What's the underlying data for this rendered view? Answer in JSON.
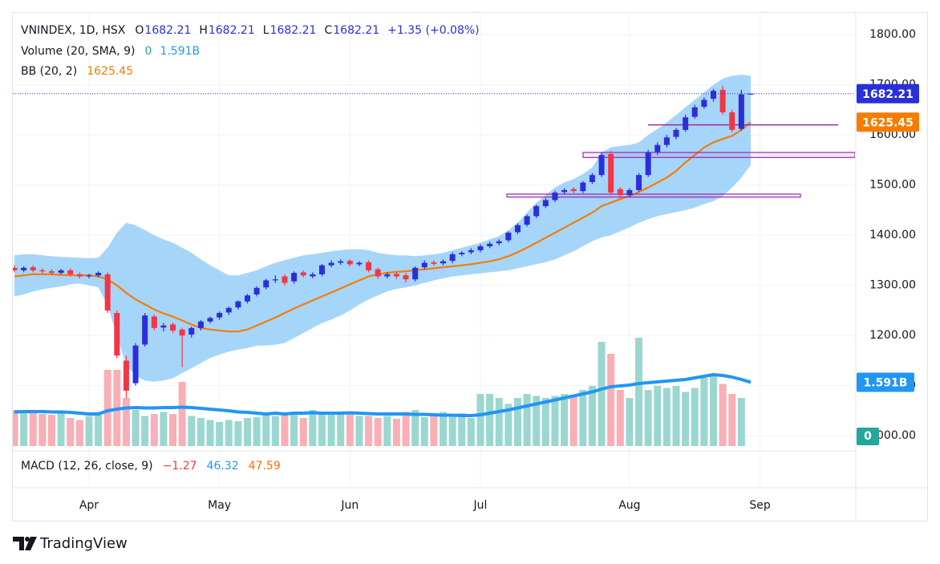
{
  "chart_data": {
    "type": "candlestick",
    "symbol": "VNINDEX, 1D, HSX",
    "ohlc_letters": [
      "O",
      "H",
      "L",
      "C"
    ],
    "change": "+1.35 (+0.08%)",
    "up_color": "#2b2fd9",
    "down_color": "#f23645",
    "categories": [
      null,
      null,
      null,
      null,
      null,
      null,
      null,
      null,
      "Apr",
      null,
      null,
      null,
      null,
      null,
      null,
      null,
      null,
      null,
      null,
      null,
      null,
      null,
      "May",
      null,
      null,
      null,
      null,
      null,
      null,
      null,
      null,
      null,
      null,
      null,
      null,
      null,
      "Jun",
      null,
      null,
      null,
      null,
      null,
      null,
      null,
      null,
      null,
      null,
      null,
      null,
      null,
      "Jul",
      null,
      null,
      null,
      null,
      null,
      null,
      null,
      null,
      null,
      null,
      null,
      null,
      null,
      null,
      null,
      "Aug",
      null,
      null,
      null,
      null,
      null,
      null,
      null,
      null,
      null,
      null,
      null,
      null,
      null,
      "Sep"
    ],
    "open": [
      1335,
      1330,
      1336,
      1330,
      1328,
      1325,
      1330,
      1322,
      1318,
      1320,
      1322,
      1245,
      1150,
      1105,
      1182,
      1238,
      1216,
      1222,
      1212,
      1202,
      1215,
      1228,
      1236,
      1246,
      1256,
      1268,
      1282,
      1296,
      1310,
      1318,
      1308,
      1326,
      1318,
      1322,
      1340,
      1345,
      1349,
      1342,
      1346,
      1332,
      1318,
      1323,
      1320,
      1312,
      1336,
      1346,
      1344,
      1349,
      1362,
      1366,
      1370,
      1378,
      1384,
      1390,
      1406,
      1421,
      1438,
      1458,
      1470,
      1486,
      1492,
      1488,
      1506,
      1520,
      1562,
      1492,
      1480,
      1490,
      1520,
      1566,
      1580,
      1596,
      1610,
      1636,
      1656,
      1672,
      1690,
      1645,
      1612,
      1682.21,
      null
    ],
    "high": [
      1340,
      1338,
      1340,
      1334,
      1332,
      1333,
      1334,
      1326,
      1323,
      1328,
      1326,
      1250,
      1160,
      1185,
      1245,
      1242,
      1225,
      1226,
      1216,
      1218,
      1231,
      1238,
      1248,
      1258,
      1270,
      1283,
      1298,
      1313,
      1320,
      1322,
      1328,
      1330,
      1326,
      1343,
      1350,
      1352,
      1352,
      1348,
      1350,
      1336,
      1326,
      1327,
      1324,
      1338,
      1350,
      1350,
      1352,
      1366,
      1368,
      1374,
      1382,
      1387,
      1392,
      1408,
      1424,
      1441,
      1461,
      1474,
      1489,
      1494,
      1496,
      1508,
      1524,
      1566,
      1568,
      1496,
      1494,
      1524,
      1570,
      1585,
      1600,
      1614,
      1640,
      1660,
      1675,
      1692,
      1698,
      1650,
      1690,
      1682.21,
      null
    ],
    "low": [
      1326,
      1326,
      1326,
      1324,
      1320,
      1322,
      1318,
      1314,
      1314,
      1316,
      1245,
      1155,
      1075,
      1100,
      1178,
      1210,
      1208,
      1205,
      1137,
      1196,
      1210,
      1224,
      1231,
      1241,
      1252,
      1264,
      1278,
      1292,
      1305,
      1300,
      1303,
      1316,
      1314,
      1318,
      1336,
      1341,
      1338,
      1338,
      1326,
      1313,
      1314,
      1313,
      1306,
      1308,
      1332,
      1339,
      1340,
      1344,
      1358,
      1362,
      1366,
      1374,
      1380,
      1386,
      1402,
      1417,
      1434,
      1454,
      1466,
      1481,
      1484,
      1484,
      1502,
      1516,
      1480,
      1474,
      1476,
      1486,
      1516,
      1560,
      1575,
      1591,
      1606,
      1632,
      1652,
      1666,
      1640,
      1605,
      1608,
      1682.21,
      null
    ],
    "close": [
      1330,
      1335,
      1330,
      1328,
      1325,
      1330,
      1322,
      1318,
      1320,
      1325,
      1250,
      1160,
      1090,
      1180,
      1240,
      1215,
      1220,
      1210,
      1200,
      1215,
      1228,
      1235,
      1245,
      1255,
      1268,
      1280,
      1295,
      1310,
      1312,
      1305,
      1325,
      1320,
      1322,
      1340,
      1345,
      1348,
      1342,
      1345,
      1330,
      1318,
      1322,
      1318,
      1312,
      1335,
      1345,
      1343,
      1348,
      1362,
      1365,
      1370,
      1378,
      1383,
      1388,
      1405,
      1420,
      1438,
      1458,
      1470,
      1485,
      1490,
      1488,
      1505,
      1520,
      1560,
      1485,
      1480,
      1490,
      1520,
      1565,
      1580,
      1595,
      1610,
      1635,
      1655,
      1670,
      1688,
      1645,
      1610,
      1680.86,
      1682.21,
      null
    ],
    "ylim": [
      970,
      1845
    ],
    "yticks": [
      {
        "value": 1000,
        "label": "1000.00"
      },
      {
        "value": 1100,
        "label": "1100.00"
      },
      {
        "value": 1200,
        "label": "1200.00"
      },
      {
        "value": 1300,
        "label": "1300.00"
      },
      {
        "value": 1400,
        "label": "1400.00"
      },
      {
        "value": 1500,
        "label": "1500.00"
      },
      {
        "value": 1600,
        "label": "1600.00"
      },
      {
        "value": 1700,
        "label": "1700.00"
      },
      {
        "value": 1800,
        "label": "1800.00"
      }
    ],
    "grid": true,
    "volume": {
      "name": "Volume (20, SMA, 9)",
      "ylim": [
        0,
        10000000000.0
      ],
      "up_color": "#8fd3cb",
      "down_color": "#f7a6ad",
      "sma_color": "#2196f3",
      "zero_box_color": "#26a69a",
      "values": [
        900000000.0,
        850000000.0,
        880000000.0,
        800000000.0,
        780000000.0,
        820000000.0,
        700000000.0,
        650000000.0,
        750000000.0,
        850000000.0,
        1900000000.0,
        1900000000.0,
        1200000000.0,
        900000000.0,
        750000000.0,
        800000000.0,
        850000000.0,
        800000000.0,
        1600000000.0,
        750000000.0,
        700000000.0,
        650000000.0,
        600000000.0,
        650000000.0,
        620000000.0,
        700000000.0,
        720000000.0,
        800000000.0,
        750000000.0,
        780000000.0,
        850000000.0,
        700000000.0,
        900000000.0,
        850000000.0,
        800000000.0,
        820000000.0,
        850000000.0,
        750000000.0,
        750000000.0,
        700000000.0,
        750000000.0,
        680000000.0,
        850000000.0,
        900000000.0,
        720000000.0,
        800000000.0,
        850000000.0,
        780000000.0,
        820000000.0,
        700000000.0,
        1300000000.0,
        1300000000.0,
        1200000000.0,
        1050000000.0,
        1200000000.0,
        1300000000.0,
        1250000000.0,
        1200000000.0,
        1250000000.0,
        1300000000.0,
        1250000000.0,
        1400000000.0,
        1500000000.0,
        2600000000.0,
        2300000000.0,
        1400000000.0,
        1200000000.0,
        2700000000.0,
        1400000000.0,
        1500000000.0,
        1450000000.0,
        1500000000.0,
        1350000000.0,
        1450000000.0,
        1700000000.0,
        1800000000.0,
        1550000000.0,
        1300000000.0,
        1200000000.0,
        0,
        null
      ],
      "sma": [
        850000000.0,
        860000000.0,
        860000000.0,
        860000000.0,
        850000000.0,
        850000000.0,
        840000000.0,
        820000000.0,
        800000000.0,
        800000000.0,
        880000000.0,
        920000000.0,
        950000000.0,
        960000000.0,
        950000000.0,
        950000000.0,
        960000000.0,
        960000000.0,
        970000000.0,
        960000000.0,
        940000000.0,
        920000000.0,
        900000000.0,
        880000000.0,
        850000000.0,
        840000000.0,
        820000000.0,
        800000000.0,
        820000000.0,
        800000000.0,
        820000000.0,
        820000000.0,
        830000000.0,
        820000000.0,
        820000000.0,
        820000000.0,
        830000000.0,
        820000000.0,
        810000000.0,
        800000000.0,
        800000000.0,
        800000000.0,
        800000000.0,
        790000000.0,
        790000000.0,
        780000000.0,
        770000000.0,
        770000000.0,
        760000000.0,
        760000000.0,
        780000000.0,
        820000000.0,
        860000000.0,
        900000000.0,
        950000000.0,
        1000000000.0,
        1050000000.0,
        1100000000.0,
        1150000000.0,
        1200000000.0,
        1250000000.0,
        1300000000.0,
        1350000000.0,
        1420000000.0,
        1480000000.0,
        1500000000.0,
        1520000000.0,
        1560000000.0,
        1580000000.0,
        1600000000.0,
        1620000000.0,
        1640000000.0,
        1660000000.0,
        1700000000.0,
        1740000000.0,
        1780000000.0,
        1760000000.0,
        1720000000.0,
        1660000000.0,
        1591000000.0,
        null
      ],
      "sma_last_label": "1.591B"
    },
    "bb": {
      "name": "BB (20, 2)",
      "fill": "#90caf9",
      "basis_color": "#f57c00",
      "upper": [
        1360,
        1362,
        1362,
        1360,
        1358,
        1357,
        1356,
        1355,
        1354,
        1355,
        1375,
        1405,
        1425,
        1420,
        1410,
        1400,
        1392,
        1385,
        1375,
        1365,
        1352,
        1340,
        1330,
        1320,
        1320,
        1325,
        1330,
        1338,
        1345,
        1350,
        1355,
        1360,
        1362,
        1365,
        1368,
        1370,
        1372,
        1372,
        1370,
        1365,
        1362,
        1360,
        1360,
        1358,
        1360,
        1362,
        1365,
        1370,
        1375,
        1380,
        1385,
        1392,
        1398,
        1410,
        1425,
        1445,
        1465,
        1480,
        1495,
        1505,
        1512,
        1522,
        1535,
        1565,
        1575,
        1578,
        1580,
        1585,
        1600,
        1612,
        1625,
        1640,
        1655,
        1670,
        1685,
        1700,
        1712,
        1718,
        1720,
        1718,
        null
      ],
      "lower": [
        1278,
        1282,
        1288,
        1292,
        1295,
        1298,
        1302,
        1304,
        1300,
        1296,
        1260,
        1200,
        1140,
        1120,
        1110,
        1108,
        1110,
        1115,
        1125,
        1135,
        1145,
        1155,
        1162,
        1168,
        1172,
        1175,
        1180,
        1180,
        1182,
        1185,
        1195,
        1205,
        1215,
        1225,
        1232,
        1240,
        1250,
        1262,
        1272,
        1280,
        1288,
        1293,
        1296,
        1300,
        1305,
        1310,
        1314,
        1318,
        1320,
        1322,
        1324,
        1326,
        1328,
        1330,
        1334,
        1338,
        1342,
        1346,
        1352,
        1360,
        1368,
        1378,
        1388,
        1396,
        1400,
        1408,
        1416,
        1425,
        1432,
        1438,
        1442,
        1446,
        1450,
        1455,
        1462,
        1468,
        1478,
        1495,
        1515,
        1540,
        null
      ],
      "basis": [
        1318,
        1320,
        1322,
        1322,
        1322,
        1321,
        1320,
        1320,
        1320,
        1318,
        1312,
        1300,
        1285,
        1272,
        1262,
        1252,
        1244,
        1238,
        1230,
        1222,
        1215,
        1212,
        1210,
        1208,
        1208,
        1212,
        1220,
        1228,
        1236,
        1245,
        1254,
        1262,
        1270,
        1278,
        1286,
        1294,
        1302,
        1310,
        1318,
        1322,
        1325,
        1327,
        1328,
        1330,
        1332,
        1334,
        1336,
        1338,
        1340,
        1342,
        1345,
        1348,
        1352,
        1358,
        1366,
        1375,
        1385,
        1395,
        1405,
        1415,
        1425,
        1435,
        1445,
        1458,
        1465,
        1472,
        1478,
        1486,
        1495,
        1505,
        1515,
        1528,
        1545,
        1560,
        1575,
        1585,
        1592,
        1598,
        1610,
        1625.45,
        null
      ]
    },
    "levels": [
      {
        "price": 1620
      },
      {
        "low": 1555,
        "high": 1565
      },
      {
        "low": 1476,
        "high": 1482
      }
    ],
    "level_color": "#9c27b0",
    "macd": {
      "name": "MACD (12, 26, close, 9)",
      "readings": [
        "−1.27",
        "46.32",
        "47.59"
      ],
      "colors": [
        "#f23645",
        "#2196f3",
        "#ff6d00"
      ]
    },
    "brand": "TradingView"
  }
}
